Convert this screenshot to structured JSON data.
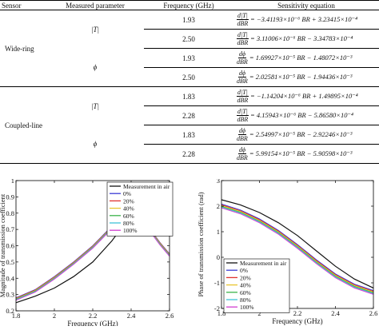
{
  "table": {
    "headers": [
      "Sensor",
      "Measured parameter",
      "Frequency (GHz)",
      "Sensitivity equation"
    ],
    "groups": [
      {
        "sensor": "Wide-ring",
        "params": [
          {
            "symbol": "|T|",
            "deriv_num": "d|T|",
            "deriv_den": "dBR",
            "rows": [
              {
                "freq": "1.93",
                "rhs": "= −3.41193×10⁻⁶ BR + 3.23415×10⁻⁴"
              },
              {
                "freq": "2.50",
                "rhs": "= 3.11006×10⁻⁶ BR − 3.34783×10⁻⁴"
              }
            ]
          },
          {
            "symbol": "ϕ",
            "deriv_num": "dϕ",
            "deriv_den": "dBR",
            "rows": [
              {
                "freq": "1.93",
                "rhs": "= 1.69927×10⁻⁵ BR − 1.48072×10⁻³"
              },
              {
                "freq": "2.50",
                "rhs": "= 2.02581×10⁻⁵ BR − 1.94436×10⁻³"
              }
            ]
          }
        ]
      },
      {
        "sensor": "Coupled-line",
        "params": [
          {
            "symbol": "|T|",
            "deriv_num": "d|T|",
            "deriv_den": "dBR",
            "rows": [
              {
                "freq": "1.83",
                "rhs": "= −1.14204×10⁻⁶ BR + 1.49895×10⁻⁴"
              },
              {
                "freq": "2.28",
                "rhs": "= 4.15943×10⁻⁶ BR − 5.86580×10⁻⁴"
              }
            ]
          },
          {
            "symbol": "ϕ",
            "deriv_num": "dϕ",
            "deriv_den": "dBR",
            "rows": [
              {
                "freq": "1.83",
                "rhs": "= 2.54997×10⁻⁵ BR − 2.92246×10⁻³"
              },
              {
                "freq": "2.28",
                "rhs": "= 5.99154×10⁻⁵ BR − 5.90598×10⁻³"
              }
            ]
          }
        ]
      }
    ]
  },
  "chart_data": [
    {
      "type": "line",
      "xlabel": "Frequency (GHz)",
      "ylabel": "Magnitude of transmission coefficient",
      "xlim": [
        1.8,
        2.6
      ],
      "ylim": [
        0.2,
        1.0
      ],
      "xticks": [
        "1.8",
        "2",
        "2.2",
        "2.4",
        "2.6"
      ],
      "yticks": [
        "0.2",
        "0.3",
        "0.4",
        "0.5",
        "0.6",
        "0.7",
        "0.8",
        "0.9",
        "1"
      ],
      "legend_position": "top-right",
      "grid": false,
      "x": [
        1.8,
        1.9,
        2.0,
        2.1,
        2.2,
        2.3,
        2.35,
        2.4,
        2.45,
        2.5,
        2.55,
        2.6
      ],
      "series": [
        {
          "name": "Measurement in air",
          "color": "#111111",
          "values": [
            0.25,
            0.29,
            0.34,
            0.41,
            0.5,
            0.63,
            0.71,
            0.82,
            0.89,
            0.92,
            0.86,
            0.72
          ]
        },
        {
          "name": "0%",
          "color": "#3b3bd6",
          "values": [
            0.28,
            0.33,
            0.41,
            0.5,
            0.6,
            0.72,
            0.78,
            0.8,
            0.77,
            0.7,
            0.62,
            0.55
          ]
        },
        {
          "name": "20%",
          "color": "#e0322f",
          "values": [
            0.277,
            0.327,
            0.407,
            0.497,
            0.597,
            0.717,
            0.777,
            0.797,
            0.767,
            0.697,
            0.617,
            0.547
          ]
        },
        {
          "name": "40%",
          "color": "#e8c52f",
          "values": [
            0.274,
            0.324,
            0.404,
            0.494,
            0.594,
            0.714,
            0.774,
            0.794,
            0.764,
            0.694,
            0.614,
            0.544
          ]
        },
        {
          "name": "60%",
          "color": "#3cb44b",
          "values": [
            0.271,
            0.321,
            0.401,
            0.491,
            0.591,
            0.711,
            0.771,
            0.791,
            0.761,
            0.691,
            0.611,
            0.541
          ]
        },
        {
          "name": "80%",
          "color": "#3fc4d8",
          "values": [
            0.268,
            0.318,
            0.398,
            0.488,
            0.588,
            0.708,
            0.768,
            0.788,
            0.758,
            0.688,
            0.608,
            0.538
          ]
        },
        {
          "name": "100%",
          "color": "#d23fd2",
          "values": [
            0.265,
            0.315,
            0.395,
            0.485,
            0.585,
            0.705,
            0.765,
            0.785,
            0.755,
            0.685,
            0.605,
            0.535
          ]
        }
      ]
    },
    {
      "type": "line",
      "xlabel": "Frequency (GHz)",
      "ylabel": "Phase of transmission coefficient (rad)",
      "xlim": [
        1.8,
        2.6
      ],
      "ylim": [
        -2,
        3
      ],
      "xticks": [
        "1.8",
        "2",
        "2.2",
        "2.4",
        "2.6"
      ],
      "yticks": [
        "-2",
        "-1",
        "0",
        "1",
        "2",
        "3"
      ],
      "legend_position": "bottom-left",
      "grid": false,
      "x": [
        1.8,
        1.9,
        2.0,
        2.1,
        2.2,
        2.3,
        2.4,
        2.5,
        2.6
      ],
      "series": [
        {
          "name": "Measurement in air",
          "color": "#111111",
          "values": [
            2.25,
            2.05,
            1.75,
            1.35,
            0.85,
            0.25,
            -0.35,
            -0.85,
            -1.2
          ]
        },
        {
          "name": "0%",
          "color": "#3b3bd6",
          "values": [
            2.08,
            1.85,
            1.5,
            1.05,
            0.5,
            -0.1,
            -0.65,
            -1.05,
            -1.3
          ]
        },
        {
          "name": "20%",
          "color": "#e0322f",
          "values": [
            2.05,
            1.82,
            1.47,
            1.02,
            0.47,
            -0.13,
            -0.68,
            -1.08,
            -1.33
          ]
        },
        {
          "name": "40%",
          "color": "#e8c52f",
          "values": [
            2.02,
            1.79,
            1.44,
            0.99,
            0.44,
            -0.16,
            -0.71,
            -1.11,
            -1.36
          ]
        },
        {
          "name": "60%",
          "color": "#3cb44b",
          "values": [
            1.99,
            1.76,
            1.41,
            0.96,
            0.41,
            -0.19,
            -0.74,
            -1.14,
            -1.39
          ]
        },
        {
          "name": "80%",
          "color": "#3fc4d8",
          "values": [
            1.96,
            1.73,
            1.38,
            0.93,
            0.38,
            -0.22,
            -0.77,
            -1.17,
            -1.42
          ]
        },
        {
          "name": "100%",
          "color": "#d23fd2",
          "values": [
            1.93,
            1.7,
            1.35,
            0.9,
            0.35,
            -0.25,
            -0.8,
            -1.2,
            -1.45
          ]
        }
      ]
    }
  ]
}
